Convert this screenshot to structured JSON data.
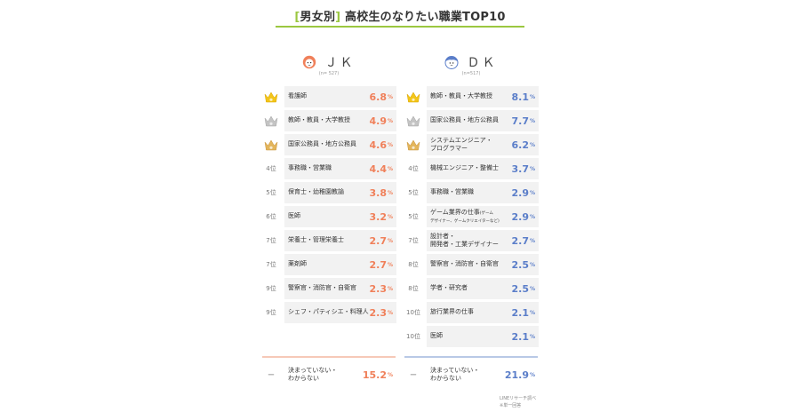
{
  "header": {
    "bracket_open": "[",
    "category": "男女別",
    "bracket_close": "]",
    "title": "高校生のなりたい職業TOP10",
    "accent_color": "#9bc740"
  },
  "chart_data": [
    {
      "type": "table",
      "label": "ＪＫ",
      "sample": "(n= 527)",
      "color": "#f0805a",
      "unit": "%",
      "rows": [
        {
          "rank": "1",
          "medal": "gold-crown-icon",
          "job": "看護師",
          "value": 6.8
        },
        {
          "rank": "2",
          "medal": "silver-crown-icon",
          "job": "教師・教員・大学教授",
          "value": 4.9
        },
        {
          "rank": "3",
          "medal": "bronze-crown-icon",
          "job": "国家公務員・地方公務員",
          "value": 4.6
        },
        {
          "rank": "4位",
          "job": "事務職・営業職",
          "value": 4.4
        },
        {
          "rank": "5位",
          "job": "保育士・幼稚園教諭",
          "value": 3.8
        },
        {
          "rank": "6位",
          "job": "医師",
          "value": 3.2
        },
        {
          "rank": "7位",
          "job": "栄養士・管理栄養士",
          "value": 2.7
        },
        {
          "rank": "7位",
          "job": "薬剤師",
          "value": 2.7
        },
        {
          "rank": "9位",
          "job": "警察官・消防官・自衛官",
          "value": 2.3
        },
        {
          "rank": "9位",
          "job": "シェフ・パティシエ・料理人",
          "value": 2.3
        }
      ],
      "undecided": {
        "rank": "ー",
        "job_line1": "決まっていない・",
        "job_line2": "わからない",
        "value": 15.2
      }
    },
    {
      "type": "table",
      "label": "ＤＫ",
      "sample": "(n=517)",
      "color": "#5b7ec9",
      "unit": "%",
      "rows": [
        {
          "rank": "1",
          "medal": "gold-crown-icon",
          "job": "教師・教員・大学教授",
          "value": 8.1
        },
        {
          "rank": "2",
          "medal": "silver-crown-icon",
          "job": "国家公務員・地方公務員",
          "value": 7.7
        },
        {
          "rank": "3",
          "medal": "bronze-crown-icon",
          "job_line1": "システムエンジニア・",
          "job_line2": "プログラマー",
          "value": 6.2
        },
        {
          "rank": "4位",
          "job": "機械エンジニア・整備士",
          "value": 3.7
        },
        {
          "rank": "5位",
          "job": "事務職・営業職",
          "value": 2.9
        },
        {
          "rank": "5位",
          "job_line1": "ゲーム業界の仕事",
          "job_note": "(ゲーム",
          "job_line2": "デザイナー、ゲームクリエイターなど)",
          "value": 2.9
        },
        {
          "rank": "7位",
          "job_line1": "設計者・",
          "job_line2": "開発者・工業デザイナー",
          "value": 2.7
        },
        {
          "rank": "8位",
          "job": "警察官・消防官・自衛官",
          "value": 2.5
        },
        {
          "rank": "8位",
          "job": "学者・研究者",
          "value": 2.5
        },
        {
          "rank": "10位",
          "job": "旅行業界の仕事",
          "value": 2.1
        },
        {
          "rank": "10位",
          "job": "医師",
          "value": 2.1
        }
      ],
      "undecided": {
        "rank": "ー",
        "job_line1": "決まっていない・",
        "job_line2": "わからない",
        "value": 21.9
      }
    }
  ],
  "footer": {
    "source": "LINEリサーチ調べ",
    "note": "※単一回答"
  }
}
